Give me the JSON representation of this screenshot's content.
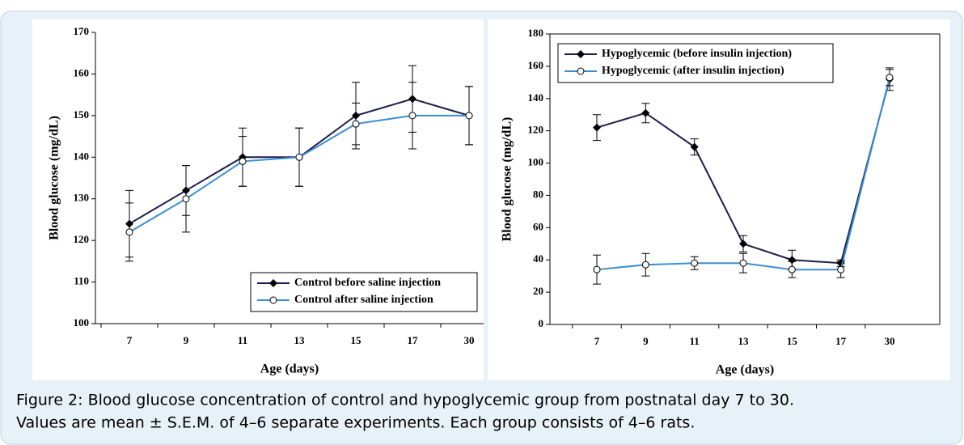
{
  "chart_data": [
    {
      "type": "line",
      "y_label": "Blood glucose (mg/dL)",
      "x_label": "Age (days)",
      "categories": [
        "7",
        "9",
        "11",
        "13",
        "15",
        "17",
        "30"
      ],
      "series": [
        {
          "name": "Control before saline injection",
          "color": "#1c1c4e",
          "marker": "filled",
          "values": [
            124,
            132,
            140,
            140,
            150,
            154,
            150
          ],
          "errors": [
            8,
            6,
            7,
            7,
            8,
            8,
            7
          ]
        },
        {
          "name": "Control after saline injection",
          "color": "#3b8fd1",
          "marker": "open",
          "values": [
            122,
            130,
            139,
            140,
            148,
            150,
            150
          ],
          "errors": [
            7,
            8,
            6,
            7,
            5,
            8,
            7
          ]
        }
      ],
      "ylim": [
        100,
        170
      ],
      "yticks": [
        100,
        110,
        120,
        130,
        140,
        150,
        160,
        170
      ],
      "legend": "lower right"
    },
    {
      "type": "line",
      "y_label": "Blood glucose (mg/dL)",
      "x_label": "Age (days)",
      "categories": [
        "7",
        "9",
        "11",
        "13",
        "15",
        "17",
        "30"
      ],
      "series": [
        {
          "name": "Hypoglycemic (before insulin injection)",
          "color": "#1c1c4e",
          "marker": "filled",
          "values": [
            122,
            131,
            110,
            50,
            40,
            38,
            152
          ],
          "errors": [
            8,
            6,
            5,
            5,
            6,
            2,
            7
          ]
        },
        {
          "name": "Hypoglycemic (after insulin injection)",
          "color": "#3b8fd1",
          "marker": "open",
          "values": [
            34,
            37,
            38,
            38,
            34,
            34,
            153
          ],
          "errors": [
            9,
            7,
            4,
            6,
            5,
            5,
            5
          ]
        }
      ],
      "ylim": [
        0,
        180
      ],
      "yticks": [
        0,
        20,
        40,
        60,
        80,
        100,
        120,
        140,
        160,
        180
      ],
      "legend": "upper left"
    }
  ],
  "caption": [
    "Figure 2: Blood glucose concentration of control and hypoglycemic group from postnatal day 7 to 30.",
    "Values are mean ± S.E.M. of 4–6 separate experiments. Each group consists of 4–6 rats."
  ]
}
